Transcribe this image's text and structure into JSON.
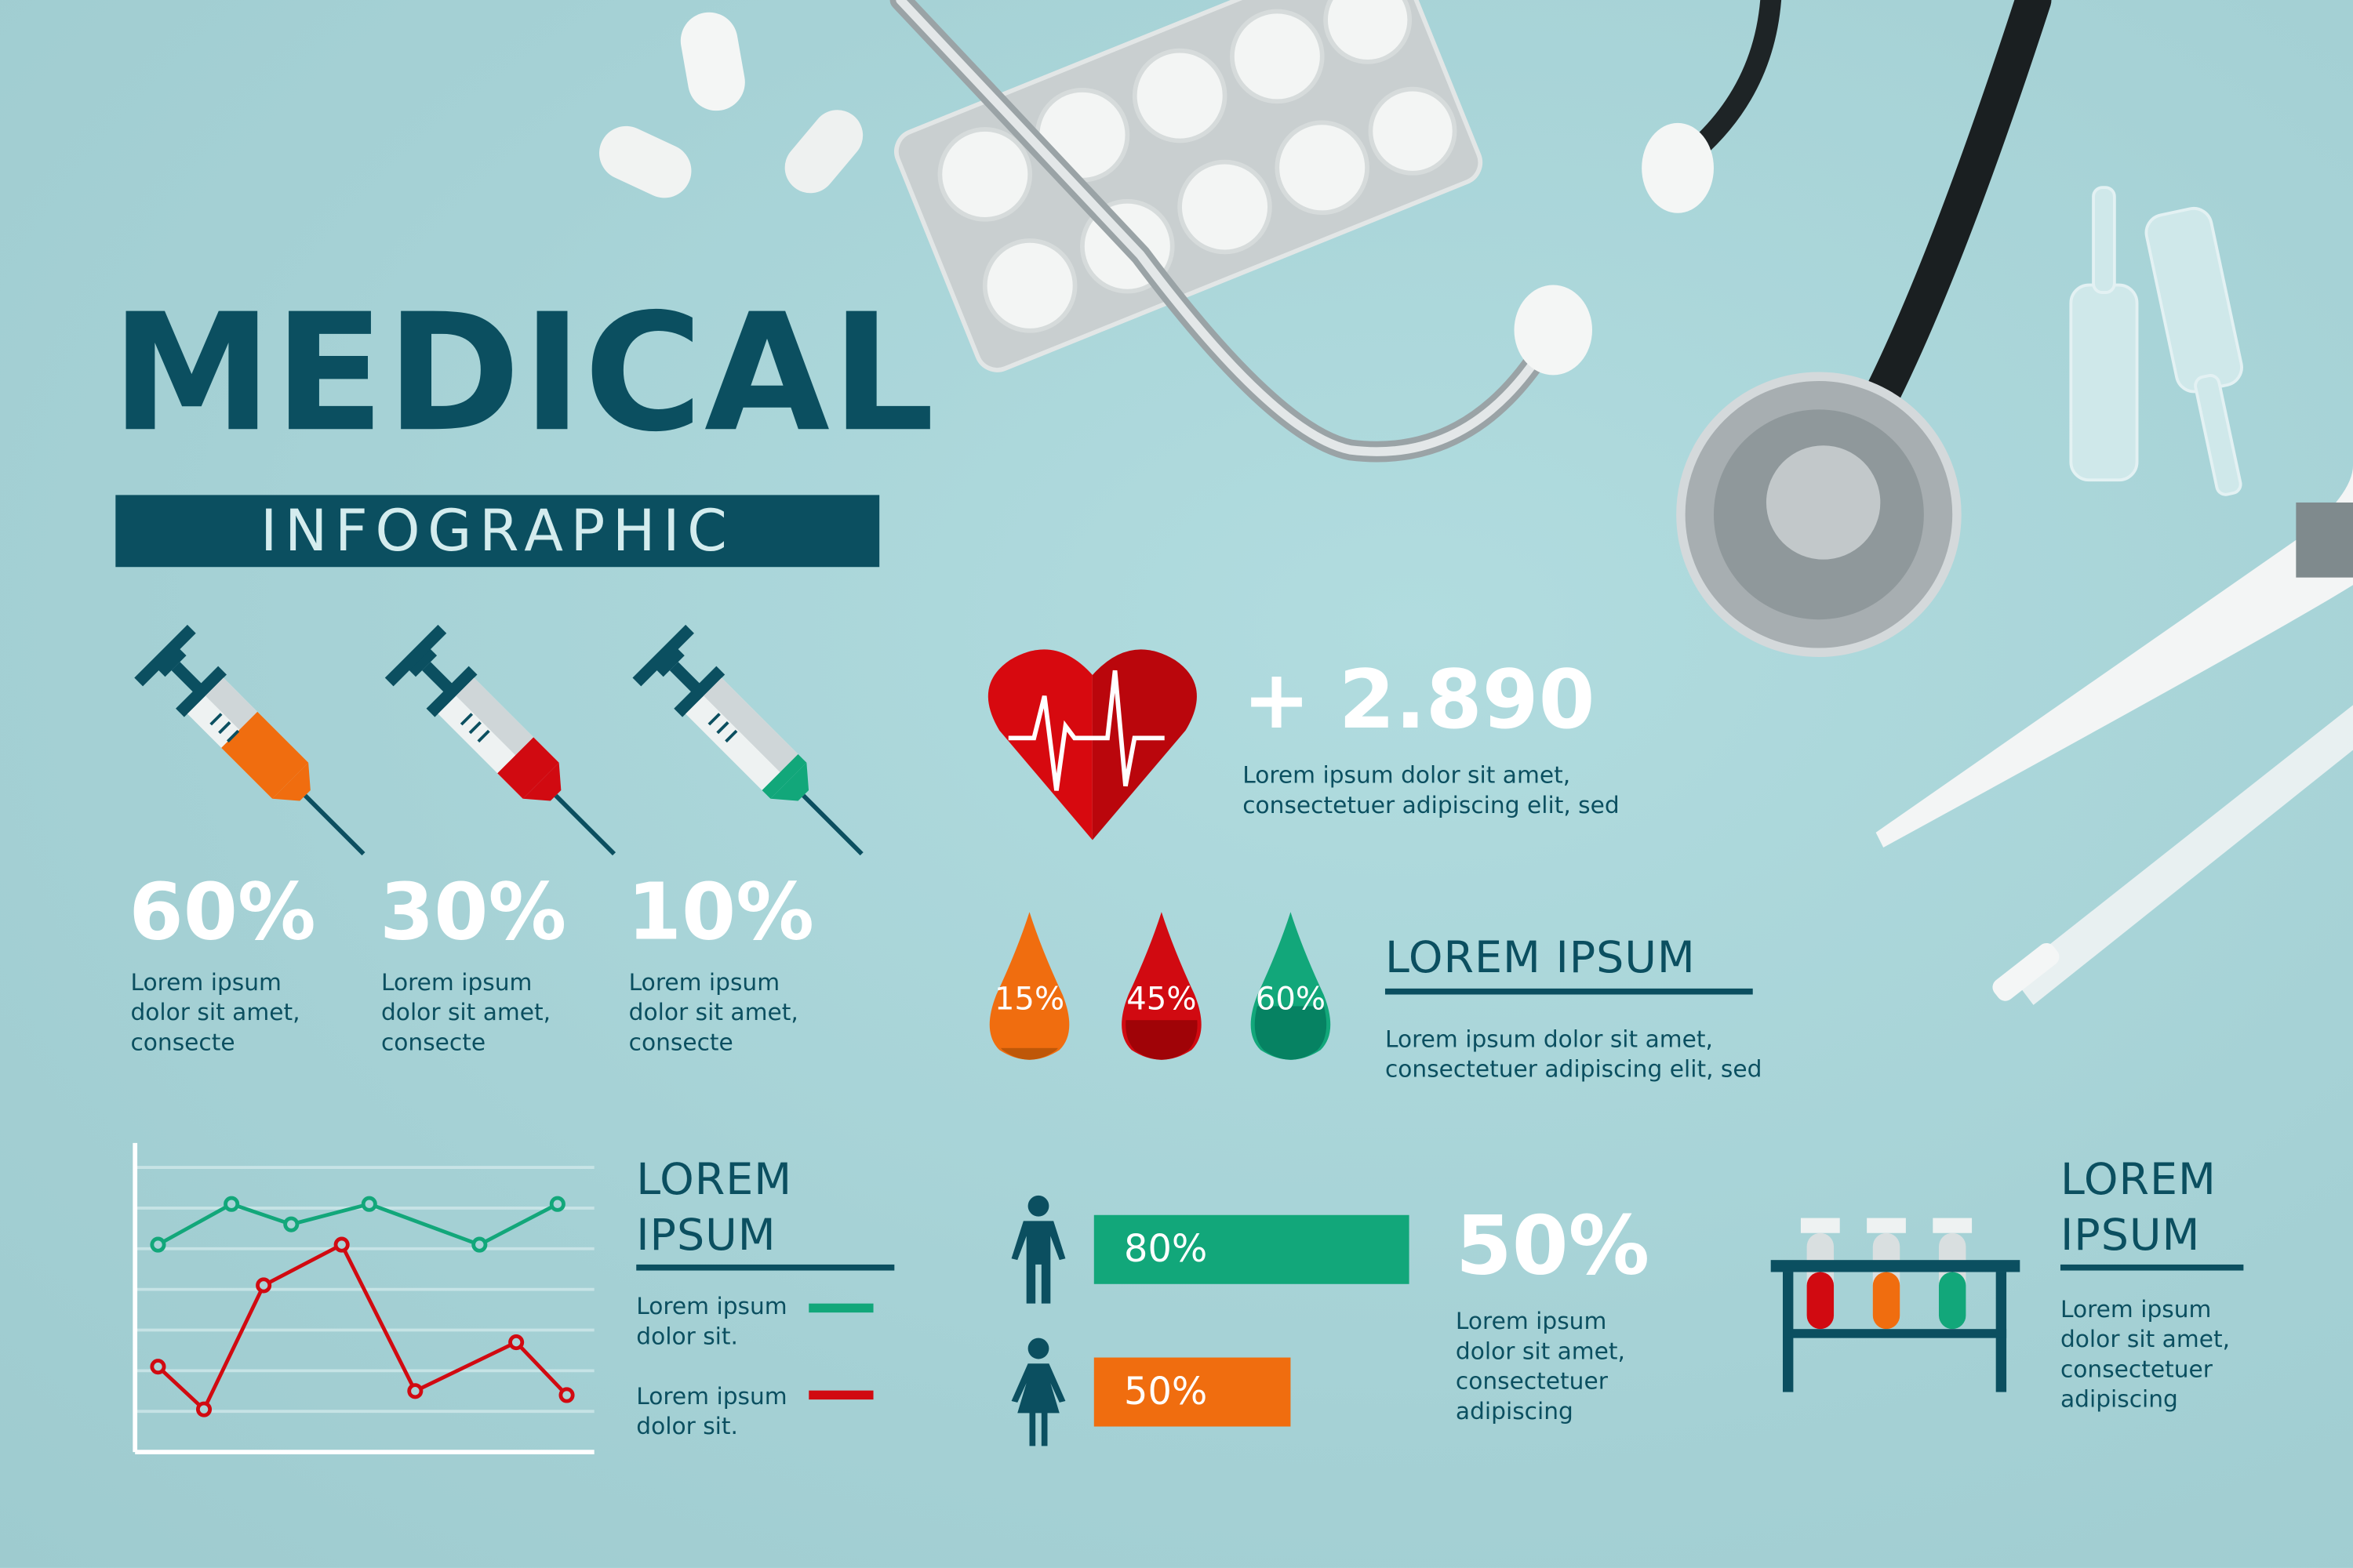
{
  "header": {
    "title": "MEDICAL",
    "subtitle": "INFOGRAPHIC"
  },
  "syringes": [
    {
      "percent": "60%",
      "text": [
        "Lorem ipsum",
        "dolor sit amet,",
        "consecte"
      ],
      "color": "#f06d0f",
      "fill": 0.6
    },
    {
      "percent": "30%",
      "text": [
        "Lorem ipsum",
        "dolor sit amet,",
        "consecte"
      ],
      "color": "#d10a11",
      "fill": 0.3
    },
    {
      "percent": "10%",
      "text": [
        "Lorem ipsum",
        "dolor sit amet,",
        "consecte"
      ],
      "color": "#12a77a",
      "fill": 0.1
    }
  ],
  "heart": {
    "icon": "heart-heartbeat-icon",
    "stat": "+ 2.890",
    "text": [
      "Lorem ipsum dolor sit amet,",
      "consectetuer adipiscing elit, sed"
    ],
    "color": "#d10a11"
  },
  "drops": {
    "items": [
      {
        "label": "15%",
        "color": "#f06d0f",
        "dark": "#bf5708",
        "level": 0.15
      },
      {
        "label": "45%",
        "color": "#d10a11",
        "dark": "#a00307",
        "level": 0.45
      },
      {
        "label": "60%",
        "color": "#12a77a",
        "dark": "#068262",
        "level": 0.6
      }
    ],
    "heading": "LOREM IPSUM",
    "text": [
      "Lorem ipsum dolor sit amet,",
      "consectetuer adipiscing elit, sed"
    ]
  },
  "chart_section": {
    "heading": [
      "LOREM",
      "IPSUM"
    ],
    "legend": [
      {
        "text": [
          "Lorem ipsum",
          "dolor sit."
        ],
        "color": "#12a77a"
      },
      {
        "text": [
          "Lorem ipsum",
          "dolor sit."
        ],
        "color": "#d10a11"
      }
    ]
  },
  "chart_data": {
    "type": "line",
    "title": "",
    "xlabel": "",
    "ylabel": "",
    "xlim": [
      0,
      100
    ],
    "ylim": [
      0,
      7.6
    ],
    "grid": true,
    "gridlines": [
      1,
      2,
      3,
      4,
      5,
      6,
      7
    ],
    "series": [
      {
        "color": "#12a77a",
        "x": [
          5,
          21,
          34,
          51,
          75,
          92
        ],
        "values": [
          5.1,
          6.1,
          5.6,
          6.1,
          5.1,
          6.1
        ]
      },
      {
        "color": "#d10a11",
        "x": [
          5,
          15,
          28,
          45,
          61,
          83,
          94
        ],
        "values": [
          2.1,
          1.05,
          4.1,
          5.1,
          1.5,
          2.7,
          1.4
        ]
      }
    ]
  },
  "gender": {
    "male": {
      "icon": "male-person-icon",
      "label": "80%",
      "value": 80,
      "color": "#12a77a"
    },
    "female": {
      "icon": "female-person-icon",
      "label": "50%",
      "value": 50,
      "color": "#f06d0f"
    },
    "stat": "50%",
    "text": [
      "Lorem ipsum",
      "dolor sit amet,",
      "consectetuer",
      "adipiscing"
    ]
  },
  "tubes": {
    "icon": "test-tube-rack-icon",
    "heading": [
      "LOREM",
      "IPSUM"
    ],
    "text": [
      "Lorem ipsum",
      "dolor sit amet,",
      "consectetuer",
      "adipiscing"
    ],
    "colors": [
      "#d10a11",
      "#f06d0f",
      "#12a77a"
    ]
  },
  "colors": {
    "accent": "#0b4f60",
    "background": "#a9d4d8"
  }
}
